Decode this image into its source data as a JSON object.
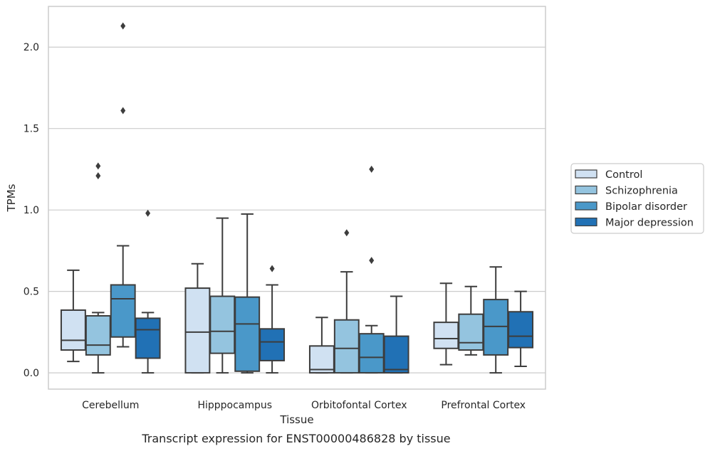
{
  "chart_data": {
    "type": "box",
    "caption": "Transcript expression for ENST00000486828 by tissue",
    "xlabel": "Tissue",
    "ylabel": "TPMs",
    "ylim": [
      -0.1,
      2.25
    ],
    "yticks": [
      0.0,
      0.5,
      1.0,
      1.5,
      2.0
    ],
    "ytick_labels": [
      "0.0",
      "0.5",
      "1.0",
      "1.5",
      "2.0"
    ],
    "grid": "horizontal",
    "legend_position": "right",
    "categories": [
      "Cerebellum",
      "Hipppocampus",
      "Orbitofontal Cortex",
      "Prefrontal Cortex"
    ],
    "series": [
      {
        "name": "Control",
        "color": "#d0e1f2",
        "boxes": [
          {
            "whisker_low": 0.07,
            "q1": 0.14,
            "median": 0.2,
            "q3": 0.385,
            "whisker_high": 0.63,
            "outliers": []
          },
          {
            "whisker_low": 0.0,
            "q1": 0.0,
            "median": 0.25,
            "q3": 0.52,
            "whisker_high": 0.67,
            "outliers": []
          },
          {
            "whisker_low": 0.0,
            "q1": 0.0,
            "median": 0.02,
            "q3": 0.165,
            "whisker_high": 0.34,
            "outliers": []
          },
          {
            "whisker_low": 0.05,
            "q1": 0.15,
            "median": 0.21,
            "q3": 0.31,
            "whisker_high": 0.55,
            "outliers": []
          }
        ]
      },
      {
        "name": "Schizophrenia",
        "color": "#94c4df",
        "boxes": [
          {
            "whisker_low": 0.0,
            "q1": 0.11,
            "median": 0.17,
            "q3": 0.35,
            "whisker_high": 0.37,
            "outliers": [
              1.21,
              1.27
            ]
          },
          {
            "whisker_low": 0.0,
            "q1": 0.12,
            "median": 0.255,
            "q3": 0.47,
            "whisker_high": 0.95,
            "outliers": []
          },
          {
            "whisker_low": 0.0,
            "q1": 0.0,
            "median": 0.15,
            "q3": 0.325,
            "whisker_high": 0.62,
            "outliers": [
              0.86
            ]
          },
          {
            "whisker_low": 0.11,
            "q1": 0.14,
            "median": 0.185,
            "q3": 0.36,
            "whisker_high": 0.53,
            "outliers": []
          }
        ]
      },
      {
        "name": "Bipolar disorder",
        "color": "#4a98c9",
        "boxes": [
          {
            "whisker_low": 0.16,
            "q1": 0.22,
            "median": 0.455,
            "q3": 0.54,
            "whisker_high": 0.78,
            "outliers": [
              1.61,
              2.13
            ]
          },
          {
            "whisker_low": 0.0,
            "q1": 0.01,
            "median": 0.3,
            "q3": 0.465,
            "whisker_high": 0.975,
            "outliers": []
          },
          {
            "whisker_low": 0.0,
            "q1": 0.0,
            "median": 0.095,
            "q3": 0.24,
            "whisker_high": 0.29,
            "outliers": [
              0.69,
              1.25
            ]
          },
          {
            "whisker_low": 0.0,
            "q1": 0.11,
            "median": 0.285,
            "q3": 0.45,
            "whisker_high": 0.65,
            "outliers": []
          }
        ]
      },
      {
        "name": "Major depression",
        "color": "#2171b5",
        "boxes": [
          {
            "whisker_low": 0.0,
            "q1": 0.09,
            "median": 0.265,
            "q3": 0.335,
            "whisker_high": 0.37,
            "outliers": [
              0.98
            ]
          },
          {
            "whisker_low": 0.0,
            "q1": 0.075,
            "median": 0.19,
            "q3": 0.27,
            "whisker_high": 0.54,
            "outliers": [
              0.64
            ]
          },
          {
            "whisker_low": 0.0,
            "q1": 0.0,
            "median": 0.02,
            "q3": 0.225,
            "whisker_high": 0.47,
            "outliers": []
          },
          {
            "whisker_low": 0.04,
            "q1": 0.155,
            "median": 0.225,
            "q3": 0.375,
            "whisker_high": 0.5,
            "outliers": []
          }
        ]
      }
    ]
  }
}
